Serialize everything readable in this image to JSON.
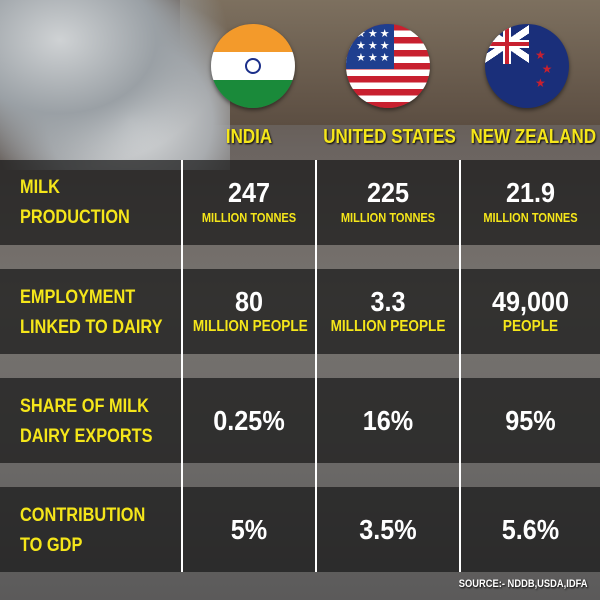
{
  "columns": [
    "INDIA",
    "UNITED STATES",
    "NEW ZEALAND"
  ],
  "flags": [
    "india-flag",
    "usa-flag",
    "new-zealand-flag"
  ],
  "rows": [
    {
      "label": [
        "MILK",
        "PRODUCTION"
      ],
      "values": [
        {
          "v": "247",
          "u": "MILLION TONNES"
        },
        {
          "v": "225",
          "u": "MILLION TONNES"
        },
        {
          "v": "21.9",
          "u": "MILLION TONNES"
        }
      ]
    },
    {
      "label": [
        "EMPLOYMENT",
        "LINKED TO DAIRY"
      ],
      "values": [
        {
          "v": "80",
          "u": "MILLION PEOPLE"
        },
        {
          "v": "3.3",
          "u": "MILLION PEOPLE"
        },
        {
          "v": "49,000",
          "u": "PEOPLE"
        }
      ]
    },
    {
      "label": [
        "SHARE OF MILK",
        "DAIRY EXPORTS"
      ],
      "values": [
        {
          "v": "0.25%"
        },
        {
          "v": "16%"
        },
        {
          "v": "95%"
        }
      ]
    },
    {
      "label": [
        "CONTRIBUTION",
        "TO GDP"
      ],
      "values": [
        {
          "v": "5%"
        },
        {
          "v": "3.5%"
        },
        {
          "v": "5.6%"
        }
      ]
    }
  ],
  "source": "SOURCE:- NDDB,USDA,IDFA",
  "colors": {
    "accent": "#f5e61a",
    "text": "#ffffff"
  }
}
